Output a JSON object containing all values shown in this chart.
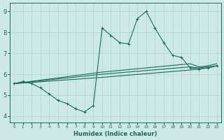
{
  "xlabel": "Humidex (Indice chaleur)",
  "bg_color": "#cce9e5",
  "line_color": "#1a6b5e",
  "grid_color": "#afd4cf",
  "xlim": [
    -0.5,
    23.5
  ],
  "ylim": [
    3.7,
    9.4
  ],
  "xticks": [
    0,
    1,
    2,
    3,
    4,
    5,
    6,
    7,
    8,
    9,
    10,
    11,
    12,
    13,
    14,
    15,
    16,
    17,
    18,
    19,
    20,
    21,
    22,
    23
  ],
  "yticks": [
    4,
    5,
    6,
    7,
    8,
    9
  ],
  "line1_x": [
    0,
    1,
    2,
    3,
    4,
    5,
    6,
    7,
    8,
    9,
    10,
    11,
    12,
    13,
    14,
    15,
    16,
    17,
    18,
    19,
    20,
    21,
    22,
    23
  ],
  "line1_y": [
    5.55,
    5.65,
    5.55,
    5.35,
    5.05,
    4.75,
    4.6,
    4.35,
    4.2,
    4.5,
    8.2,
    7.85,
    7.5,
    7.45,
    8.65,
    9.0,
    8.2,
    7.5,
    6.9,
    6.8,
    6.3,
    6.25,
    6.3,
    6.4
  ],
  "line2_x": [
    0,
    10,
    20,
    21,
    22,
    23
  ],
  "line2_y": [
    5.55,
    5.85,
    6.2,
    6.25,
    6.3,
    6.4
  ],
  "line3_x": [
    0,
    10,
    20,
    21,
    22,
    23
  ],
  "line3_y": [
    5.55,
    6.0,
    6.35,
    6.3,
    6.35,
    6.4
  ],
  "line4_x": [
    0,
    10,
    20,
    21,
    22,
    23
  ],
  "line4_y": [
    5.55,
    6.1,
    6.5,
    6.35,
    6.4,
    6.5
  ]
}
